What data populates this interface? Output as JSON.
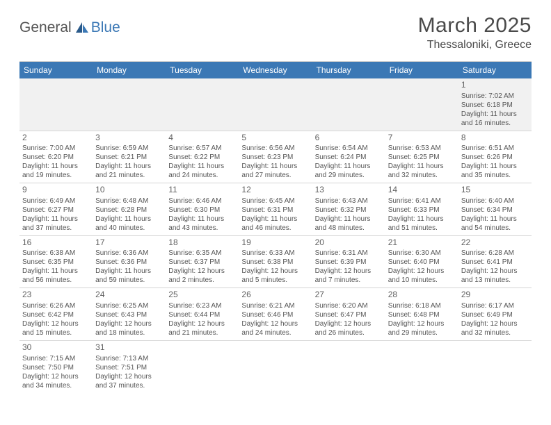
{
  "logo": {
    "general": "General",
    "blue": "Blue"
  },
  "title": "March 2025",
  "location": "Thessaloniki, Greece",
  "colors": {
    "header_bg": "#3b78b5",
    "header_text": "#ffffff",
    "border": "#d5d5d5",
    "text": "#555555",
    "empty_bg": "#f1f1f1"
  },
  "weekdays": [
    "Sunday",
    "Monday",
    "Tuesday",
    "Wednesday",
    "Thursday",
    "Friday",
    "Saturday"
  ],
  "weeks": [
    [
      null,
      null,
      null,
      null,
      null,
      null,
      {
        "n": "1",
        "sr": "Sunrise: 7:02 AM",
        "ss": "Sunset: 6:18 PM",
        "dl": "Daylight: 11 hours and 16 minutes."
      }
    ],
    [
      {
        "n": "2",
        "sr": "Sunrise: 7:00 AM",
        "ss": "Sunset: 6:20 PM",
        "dl": "Daylight: 11 hours and 19 minutes."
      },
      {
        "n": "3",
        "sr": "Sunrise: 6:59 AM",
        "ss": "Sunset: 6:21 PM",
        "dl": "Daylight: 11 hours and 21 minutes."
      },
      {
        "n": "4",
        "sr": "Sunrise: 6:57 AM",
        "ss": "Sunset: 6:22 PM",
        "dl": "Daylight: 11 hours and 24 minutes."
      },
      {
        "n": "5",
        "sr": "Sunrise: 6:56 AM",
        "ss": "Sunset: 6:23 PM",
        "dl": "Daylight: 11 hours and 27 minutes."
      },
      {
        "n": "6",
        "sr": "Sunrise: 6:54 AM",
        "ss": "Sunset: 6:24 PM",
        "dl": "Daylight: 11 hours and 29 minutes."
      },
      {
        "n": "7",
        "sr": "Sunrise: 6:53 AM",
        "ss": "Sunset: 6:25 PM",
        "dl": "Daylight: 11 hours and 32 minutes."
      },
      {
        "n": "8",
        "sr": "Sunrise: 6:51 AM",
        "ss": "Sunset: 6:26 PM",
        "dl": "Daylight: 11 hours and 35 minutes."
      }
    ],
    [
      {
        "n": "9",
        "sr": "Sunrise: 6:49 AM",
        "ss": "Sunset: 6:27 PM",
        "dl": "Daylight: 11 hours and 37 minutes."
      },
      {
        "n": "10",
        "sr": "Sunrise: 6:48 AM",
        "ss": "Sunset: 6:28 PM",
        "dl": "Daylight: 11 hours and 40 minutes."
      },
      {
        "n": "11",
        "sr": "Sunrise: 6:46 AM",
        "ss": "Sunset: 6:30 PM",
        "dl": "Daylight: 11 hours and 43 minutes."
      },
      {
        "n": "12",
        "sr": "Sunrise: 6:45 AM",
        "ss": "Sunset: 6:31 PM",
        "dl": "Daylight: 11 hours and 46 minutes."
      },
      {
        "n": "13",
        "sr": "Sunrise: 6:43 AM",
        "ss": "Sunset: 6:32 PM",
        "dl": "Daylight: 11 hours and 48 minutes."
      },
      {
        "n": "14",
        "sr": "Sunrise: 6:41 AM",
        "ss": "Sunset: 6:33 PM",
        "dl": "Daylight: 11 hours and 51 minutes."
      },
      {
        "n": "15",
        "sr": "Sunrise: 6:40 AM",
        "ss": "Sunset: 6:34 PM",
        "dl": "Daylight: 11 hours and 54 minutes."
      }
    ],
    [
      {
        "n": "16",
        "sr": "Sunrise: 6:38 AM",
        "ss": "Sunset: 6:35 PM",
        "dl": "Daylight: 11 hours and 56 minutes."
      },
      {
        "n": "17",
        "sr": "Sunrise: 6:36 AM",
        "ss": "Sunset: 6:36 PM",
        "dl": "Daylight: 11 hours and 59 minutes."
      },
      {
        "n": "18",
        "sr": "Sunrise: 6:35 AM",
        "ss": "Sunset: 6:37 PM",
        "dl": "Daylight: 12 hours and 2 minutes."
      },
      {
        "n": "19",
        "sr": "Sunrise: 6:33 AM",
        "ss": "Sunset: 6:38 PM",
        "dl": "Daylight: 12 hours and 5 minutes."
      },
      {
        "n": "20",
        "sr": "Sunrise: 6:31 AM",
        "ss": "Sunset: 6:39 PM",
        "dl": "Daylight: 12 hours and 7 minutes."
      },
      {
        "n": "21",
        "sr": "Sunrise: 6:30 AM",
        "ss": "Sunset: 6:40 PM",
        "dl": "Daylight: 12 hours and 10 minutes."
      },
      {
        "n": "22",
        "sr": "Sunrise: 6:28 AM",
        "ss": "Sunset: 6:41 PM",
        "dl": "Daylight: 12 hours and 13 minutes."
      }
    ],
    [
      {
        "n": "23",
        "sr": "Sunrise: 6:26 AM",
        "ss": "Sunset: 6:42 PM",
        "dl": "Daylight: 12 hours and 15 minutes."
      },
      {
        "n": "24",
        "sr": "Sunrise: 6:25 AM",
        "ss": "Sunset: 6:43 PM",
        "dl": "Daylight: 12 hours and 18 minutes."
      },
      {
        "n": "25",
        "sr": "Sunrise: 6:23 AM",
        "ss": "Sunset: 6:44 PM",
        "dl": "Daylight: 12 hours and 21 minutes."
      },
      {
        "n": "26",
        "sr": "Sunrise: 6:21 AM",
        "ss": "Sunset: 6:46 PM",
        "dl": "Daylight: 12 hours and 24 minutes."
      },
      {
        "n": "27",
        "sr": "Sunrise: 6:20 AM",
        "ss": "Sunset: 6:47 PM",
        "dl": "Daylight: 12 hours and 26 minutes."
      },
      {
        "n": "28",
        "sr": "Sunrise: 6:18 AM",
        "ss": "Sunset: 6:48 PM",
        "dl": "Daylight: 12 hours and 29 minutes."
      },
      {
        "n": "29",
        "sr": "Sunrise: 6:17 AM",
        "ss": "Sunset: 6:49 PM",
        "dl": "Daylight: 12 hours and 32 minutes."
      }
    ],
    [
      {
        "n": "30",
        "sr": "Sunrise: 7:15 AM",
        "ss": "Sunset: 7:50 PM",
        "dl": "Daylight: 12 hours and 34 minutes."
      },
      {
        "n": "31",
        "sr": "Sunrise: 7:13 AM",
        "ss": "Sunset: 7:51 PM",
        "dl": "Daylight: 12 hours and 37 minutes."
      },
      null,
      null,
      null,
      null,
      null
    ]
  ]
}
